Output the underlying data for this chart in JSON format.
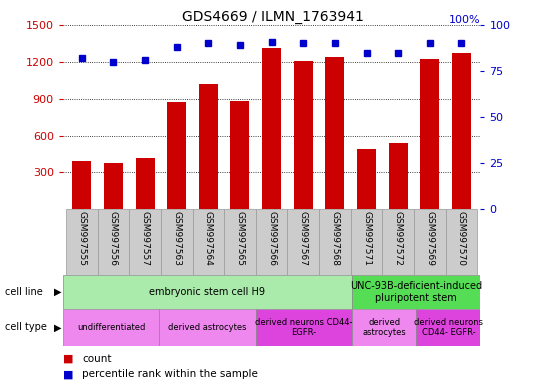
{
  "title": "GDS4669 / ILMN_1763941",
  "samples": [
    "GSM997555",
    "GSM997556",
    "GSM997557",
    "GSM997563",
    "GSM997564",
    "GSM997565",
    "GSM997566",
    "GSM997567",
    "GSM997568",
    "GSM997571",
    "GSM997572",
    "GSM997569",
    "GSM997570"
  ],
  "counts": [
    390,
    375,
    420,
    870,
    1020,
    880,
    1310,
    1210,
    1240,
    490,
    540,
    1220,
    1270
  ],
  "percentiles": [
    82,
    80,
    81,
    88,
    90,
    89,
    91,
    90,
    90,
    85,
    85,
    90,
    90
  ],
  "ylim_left": [
    0,
    1500
  ],
  "ylim_right": [
    0,
    100
  ],
  "yticks_left": [
    300,
    600,
    900,
    1200,
    1500
  ],
  "yticks_right": [
    0,
    25,
    50,
    75,
    100
  ],
  "bar_color": "#cc0000",
  "dot_color": "#0000cc",
  "cell_line_groups": [
    {
      "label": "embryonic stem cell H9",
      "start": 0,
      "end": 8,
      "color": "#aaeaaa"
    },
    {
      "label": "UNC-93B-deficient-induced\npluripotent stem",
      "start": 9,
      "end": 12,
      "color": "#55dd55"
    }
  ],
  "cell_type_groups": [
    {
      "label": "undifferentiated",
      "start": 0,
      "end": 2,
      "color": "#ee88ee"
    },
    {
      "label": "derived astrocytes",
      "start": 3,
      "end": 5,
      "color": "#ee88ee"
    },
    {
      "label": "derived neurons CD44-\nEGFR-",
      "start": 6,
      "end": 8,
      "color": "#dd44dd"
    },
    {
      "label": "derived\nastrocytes",
      "start": 9,
      "end": 10,
      "color": "#ee88ee"
    },
    {
      "label": "derived neurons\nCD44- EGFR-",
      "start": 11,
      "end": 12,
      "color": "#dd44dd"
    }
  ],
  "ylabel_left_color": "#cc0000",
  "ylabel_right_color": "#0000cc",
  "sample_box_color": "#cccccc",
  "sample_box_edge": "#999999"
}
